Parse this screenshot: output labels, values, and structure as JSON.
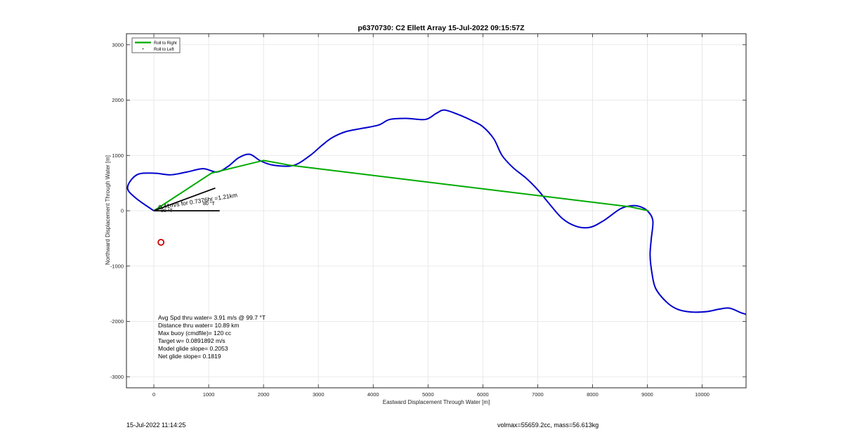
{
  "chart_data": {
    "type": "line",
    "title": "p6370730: C2 Ellett Array 15-Jul-2022 09:15:57Z",
    "xlabel": "Eastward Displacement Through Water [m]",
    "ylabel": "Northward Displacement Through Water [m]",
    "xlim": [
      -500,
      10800
    ],
    "ylim": [
      -3200,
      3200
    ],
    "xticks": [
      0,
      1000,
      2000,
      3000,
      4000,
      5000,
      6000,
      7000,
      8000,
      9000,
      10000
    ],
    "yticks": [
      -3000,
      -2000,
      -1000,
      0,
      1000,
      2000,
      3000
    ],
    "grid": true,
    "legend": {
      "placement": "top-left",
      "entries": [
        "Roll to Right",
        "Roll to Left"
      ]
    },
    "series": [
      {
        "name": "Roll to Right",
        "color": "#00aa00",
        "points": [
          [
            0,
            0
          ],
          [
            1050,
            680
          ],
          [
            2000,
            910
          ],
          [
            2500,
            820
          ],
          [
            8700,
            70
          ],
          [
            9020,
            0
          ]
        ]
      },
      {
        "name": "Roll to Left",
        "color": "#0000cc",
        "points": [
          [
            0,
            0
          ],
          [
            -330,
            230
          ],
          [
            -480,
            420
          ],
          [
            -310,
            650
          ],
          [
            0,
            680
          ],
          [
            300,
            650
          ],
          [
            600,
            700
          ],
          [
            900,
            760
          ],
          [
            1150,
            700
          ],
          [
            1350,
            800
          ],
          [
            1550,
            960
          ],
          [
            1750,
            1020
          ],
          [
            1950,
            900
          ],
          [
            2200,
            820
          ],
          [
            2550,
            820
          ],
          [
            2850,
            1000
          ],
          [
            3050,
            1170
          ],
          [
            3250,
            1320
          ],
          [
            3500,
            1430
          ],
          [
            3800,
            1490
          ],
          [
            4100,
            1550
          ],
          [
            4300,
            1650
          ],
          [
            4600,
            1670
          ],
          [
            4950,
            1650
          ],
          [
            5150,
            1760
          ],
          [
            5300,
            1820
          ],
          [
            5550,
            1740
          ],
          [
            5800,
            1630
          ],
          [
            6000,
            1520
          ],
          [
            6200,
            1300
          ],
          [
            6350,
            1000
          ],
          [
            6550,
            780
          ],
          [
            6800,
            580
          ],
          [
            7000,
            380
          ],
          [
            7200,
            140
          ],
          [
            7450,
            -140
          ],
          [
            7700,
            -280
          ],
          [
            7950,
            -300
          ],
          [
            8200,
            -180
          ],
          [
            8500,
            30
          ],
          [
            8700,
            90
          ],
          [
            8850,
            80
          ],
          [
            9000,
            0
          ],
          [
            9100,
            -180
          ],
          [
            9070,
            -520
          ],
          [
            9050,
            -800
          ],
          [
            9080,
            -1100
          ],
          [
            9150,
            -1400
          ],
          [
            9350,
            -1650
          ],
          [
            9550,
            -1780
          ],
          [
            9800,
            -1830
          ],
          [
            10100,
            -1820
          ],
          [
            10300,
            -1780
          ],
          [
            10500,
            -1760
          ],
          [
            10700,
            -1840
          ],
          [
            10800,
            -1870
          ]
        ]
      }
    ],
    "marker": {
      "x": 130,
      "y": -570,
      "color": "#cc0000"
    },
    "heading_lines": [
      [
        0,
        0,
        1120,
        410
      ],
      [
        0,
        0,
        1200,
        0
      ]
    ],
    "annotation": "0.41m/s for 0.7376hr =1.21km",
    "heading_labels": [
      "80 °T",
      "80 °T"
    ],
    "stats": [
      "Avg Spd thru water=  3.91 m/s @  99.7 °T",
      "Distance thru water= 10.89 km",
      "Max buoy (cmdfile)= 120 cc",
      "Target w= 0.0891892 m/s",
      "Model glide slope= 0.2053",
      "Net glide slope= 0.1819"
    ]
  },
  "footer": {
    "date": "15-Jul-2022 11:14:25",
    "mass": "volmax=55659.2cc, mass=56.613kg"
  }
}
